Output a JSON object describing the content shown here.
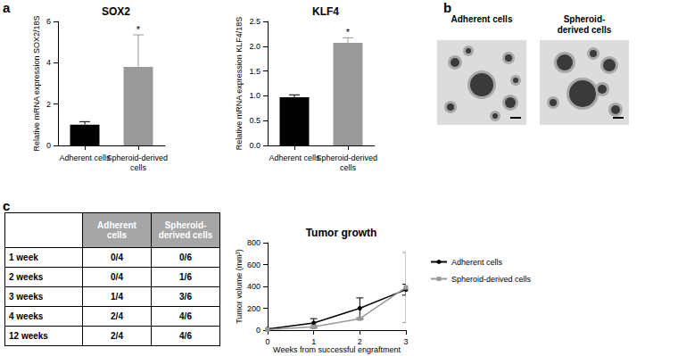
{
  "panels": [
    "a",
    "b",
    "c"
  ],
  "chart_data": [
    {
      "type": "bar",
      "title": "SOX2",
      "y_label": "Relative mRNA expression SOX2/18S",
      "categories": [
        "Adherent cells",
        "Spheroid-derived cells"
      ],
      "values": [
        1.0,
        3.8
      ],
      "errors": [
        0.15,
        1.55
      ],
      "colors": [
        "#000000",
        "#999999"
      ],
      "ylim": [
        0,
        6
      ],
      "yticks": [
        0,
        2,
        4,
        6
      ],
      "annotations": [
        {
          "category": "Spheroid-derived cells",
          "text": "*"
        }
      ]
    },
    {
      "type": "bar",
      "title": "KLF4",
      "y_label": "Relative mRNA expression KLF4/18S",
      "categories": [
        "Adherent cells",
        "Spheroid-derived cells"
      ],
      "values": [
        0.97,
        2.07
      ],
      "errors": [
        0.05,
        0.1
      ],
      "colors": [
        "#000000",
        "#999999"
      ],
      "ylim": [
        0,
        2.5
      ],
      "yticks": [
        {
          "value": 0,
          "label": "0.0"
        },
        {
          "value": 0.5,
          "label": "0.5"
        },
        {
          "value": 1,
          "label": "1.0"
        },
        {
          "value": 1.5,
          "label": "1.5"
        },
        {
          "value": 2,
          "label": "2.0"
        },
        {
          "value": 2.5,
          "label": "2.5"
        }
      ],
      "annotations": [
        {
          "category": "Spheroid-derived cells",
          "text": "*"
        }
      ]
    },
    {
      "type": "line",
      "title": "Tumor growth",
      "x_label": "Weeks from successful engraftment",
      "y_label": "Tumor volume (mm³)",
      "x": [
        0,
        1,
        2,
        3
      ],
      "series": [
        {
          "name": "Adherent cells",
          "color": "#000000",
          "marker": "circle",
          "values": [
            10,
            65,
            200,
            370
          ],
          "errors": [
            5,
            40,
            95,
            50
          ]
        },
        {
          "name": "Spheroid-derived cells",
          "color": "#999999",
          "marker": "square",
          "values": [
            5,
            30,
            105,
            390
          ],
          "errors": [
            3,
            15,
            10,
            320
          ]
        }
      ],
      "xlim": [
        0,
        3
      ],
      "xticks": [
        0,
        1,
        2,
        3
      ],
      "ylim": [
        0,
        800
      ],
      "yticks": [
        0,
        200,
        400,
        600,
        800
      ],
      "legend": "right"
    }
  ],
  "images": {
    "titles": [
      "Adherent cells",
      "Spheroid-derived cells"
    ]
  },
  "table": {
    "header": [
      "Adherent cells",
      "Spheroid-derived cells"
    ],
    "rows": [
      [
        "1 week",
        "0/4",
        "0/6"
      ],
      [
        "2 weeks",
        "0/4",
        "1/6"
      ],
      [
        "3 weeks",
        "1/4",
        "3/6"
      ],
      [
        "4 weeks",
        "2/4",
        "4/6"
      ],
      [
        "12 weeks",
        "2/4",
        "4/6"
      ]
    ]
  }
}
